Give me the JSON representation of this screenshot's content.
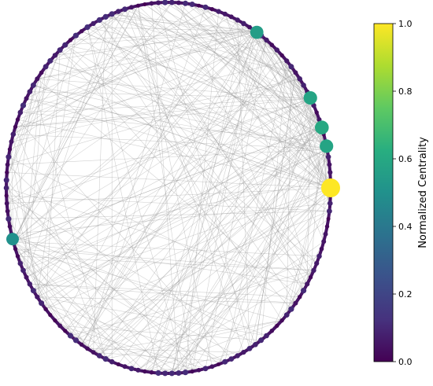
{
  "chart_data": {
    "type": "network-circular-layout",
    "node_count": 150,
    "edge_count": 330,
    "node_color_metric": "Normalized Centrality",
    "colormap": "viridis",
    "colorbar": {
      "label": "Normalized Centrality",
      "range": [
        0.0,
        1.0
      ],
      "ticks": [
        "0.0",
        "0.2",
        "0.4",
        "0.6",
        "0.8",
        "1.0"
      ]
    },
    "highlighted_nodes": [
      {
        "angle_deg": 0,
        "centrality": 1.0
      },
      {
        "angle_deg": 13,
        "centrality": 0.58
      },
      {
        "angle_deg": 19,
        "centrality": 0.6
      },
      {
        "angle_deg": 29,
        "centrality": 0.58
      },
      {
        "angle_deg": 57,
        "centrality": 0.55
      },
      {
        "angle_deg": 196,
        "centrality": 0.5
      }
    ],
    "colors": {
      "edge": "#9a9a9a",
      "low_node": "#440154",
      "ring": "#471365"
    }
  }
}
